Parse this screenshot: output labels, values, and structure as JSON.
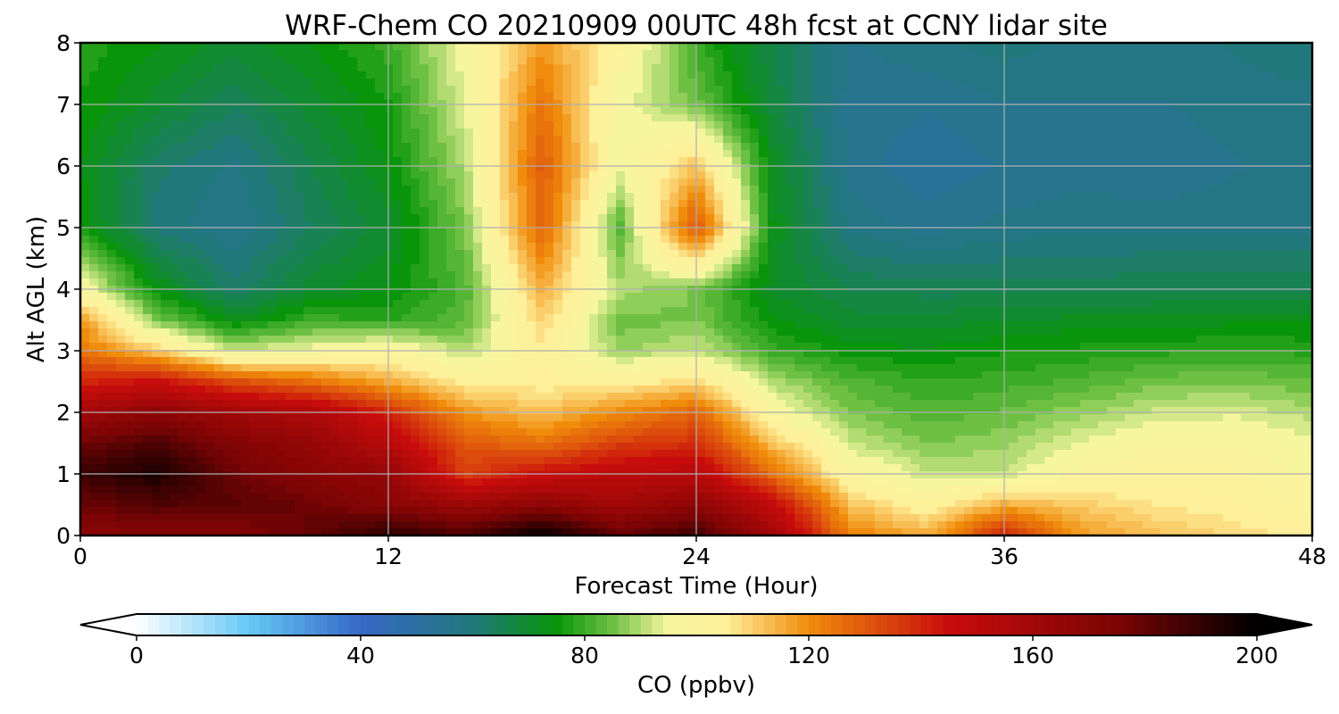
{
  "chart_data": {
    "type": "heatmap",
    "subtype": "filled-contour",
    "title": "WRF-Chem CO  20210909 00UTC 48h fcst at CCNY lidar site",
    "xlabel": "Forecast Time (Hour)",
    "ylabel": "Alt AGL (km)",
    "xlim": [
      0,
      48
    ],
    "ylim": [
      0,
      8
    ],
    "xticks": [
      0,
      12,
      24,
      36,
      48
    ],
    "xtick_labels": [
      "0",
      "12",
      "24",
      "36",
      "48"
    ],
    "yticks": [
      0,
      1,
      2,
      3,
      4,
      5,
      6,
      7,
      8
    ],
    "ytick_labels": [
      "0",
      "1",
      "2",
      "3",
      "4",
      "5",
      "6",
      "7",
      "8"
    ],
    "grid": true,
    "x": [
      0,
      3,
      6,
      9,
      12,
      15,
      18,
      21,
      24,
      27,
      30,
      33,
      36,
      39,
      42,
      45,
      48
    ],
    "y": [
      0,
      0.5,
      1,
      1.5,
      2,
      2.5,
      3,
      3.5,
      4,
      5,
      6,
      7,
      8
    ],
    "z": [
      [
        170,
        170,
        172,
        180,
        192,
        185,
        200,
        180,
        188,
        160,
        122,
        115,
        140,
        118,
        112,
        108,
        105
      ],
      [
        178,
        184,
        182,
        178,
        170,
        162,
        168,
        160,
        168,
        148,
        112,
        102,
        115,
        110,
        106,
        104,
        100
      ],
      [
        188,
        195,
        178,
        170,
        165,
        135,
        145,
        150,
        152,
        125,
        100,
        92,
        92,
        100,
        103,
        102,
        98
      ],
      [
        178,
        185,
        172,
        165,
        152,
        130,
        125,
        135,
        138,
        112,
        92,
        86,
        88,
        94,
        98,
        98,
        95
      ],
      [
        160,
        168,
        160,
        155,
        140,
        118,
        112,
        120,
        128,
        98,
        86,
        82,
        84,
        88,
        92,
        93,
        90
      ],
      [
        140,
        145,
        132,
        125,
        115,
        105,
        104,
        104,
        108,
        90,
        82,
        79,
        80,
        82,
        85,
        86,
        84
      ],
      [
        125,
        110,
        92,
        96,
        100,
        90,
        105,
        88,
        92,
        80,
        75,
        74,
        76,
        77,
        78,
        79,
        78
      ],
      [
        118,
        86,
        72,
        80,
        78,
        83,
        110,
        85,
        86,
        74,
        70,
        70,
        71,
        72,
        72,
        73,
        73
      ],
      [
        98,
        74,
        62,
        70,
        74,
        82,
        115,
        90,
        86,
        71,
        66,
        65,
        65,
        65,
        66,
        66,
        66
      ],
      [
        76,
        60,
        56,
        64,
        70,
        86,
        128,
        82,
        132,
        73,
        58,
        55,
        57,
        58,
        58,
        58,
        58
      ],
      [
        74,
        62,
        58,
        66,
        74,
        90,
        130,
        95,
        112,
        72,
        55,
        52,
        54,
        55,
        54,
        56,
        57
      ],
      [
        76,
        70,
        64,
        70,
        76,
        94,
        125,
        96,
        85,
        68,
        55,
        54,
        56,
        56,
        56,
        58,
        58
      ],
      [
        78,
        74,
        70,
        74,
        80,
        96,
        118,
        102,
        80,
        66,
        56,
        58,
        60,
        58,
        58,
        59,
        60
      ]
    ],
    "colorbar": {
      "label": "CO  (ppbv)",
      "min": 0,
      "max": 200,
      "ticks": [
        0,
        40,
        80,
        120,
        160,
        200
      ],
      "tick_labels": [
        "0",
        "40",
        "80",
        "120",
        "160",
        "200"
      ],
      "extend": "both",
      "colormap_stops": [
        [
          0,
          "#ffffff"
        ],
        [
          20,
          "#66c8f5"
        ],
        [
          40,
          "#3668c8"
        ],
        [
          60,
          "#21787a"
        ],
        [
          75,
          "#09950a"
        ],
        [
          85,
          "#6ec043"
        ],
        [
          95,
          "#f6f6a0"
        ],
        [
          105,
          "#fff09b"
        ],
        [
          120,
          "#f08c0c"
        ],
        [
          145,
          "#c80c0c"
        ],
        [
          175,
          "#7c0404"
        ],
        [
          200,
          "#000000"
        ]
      ]
    }
  }
}
